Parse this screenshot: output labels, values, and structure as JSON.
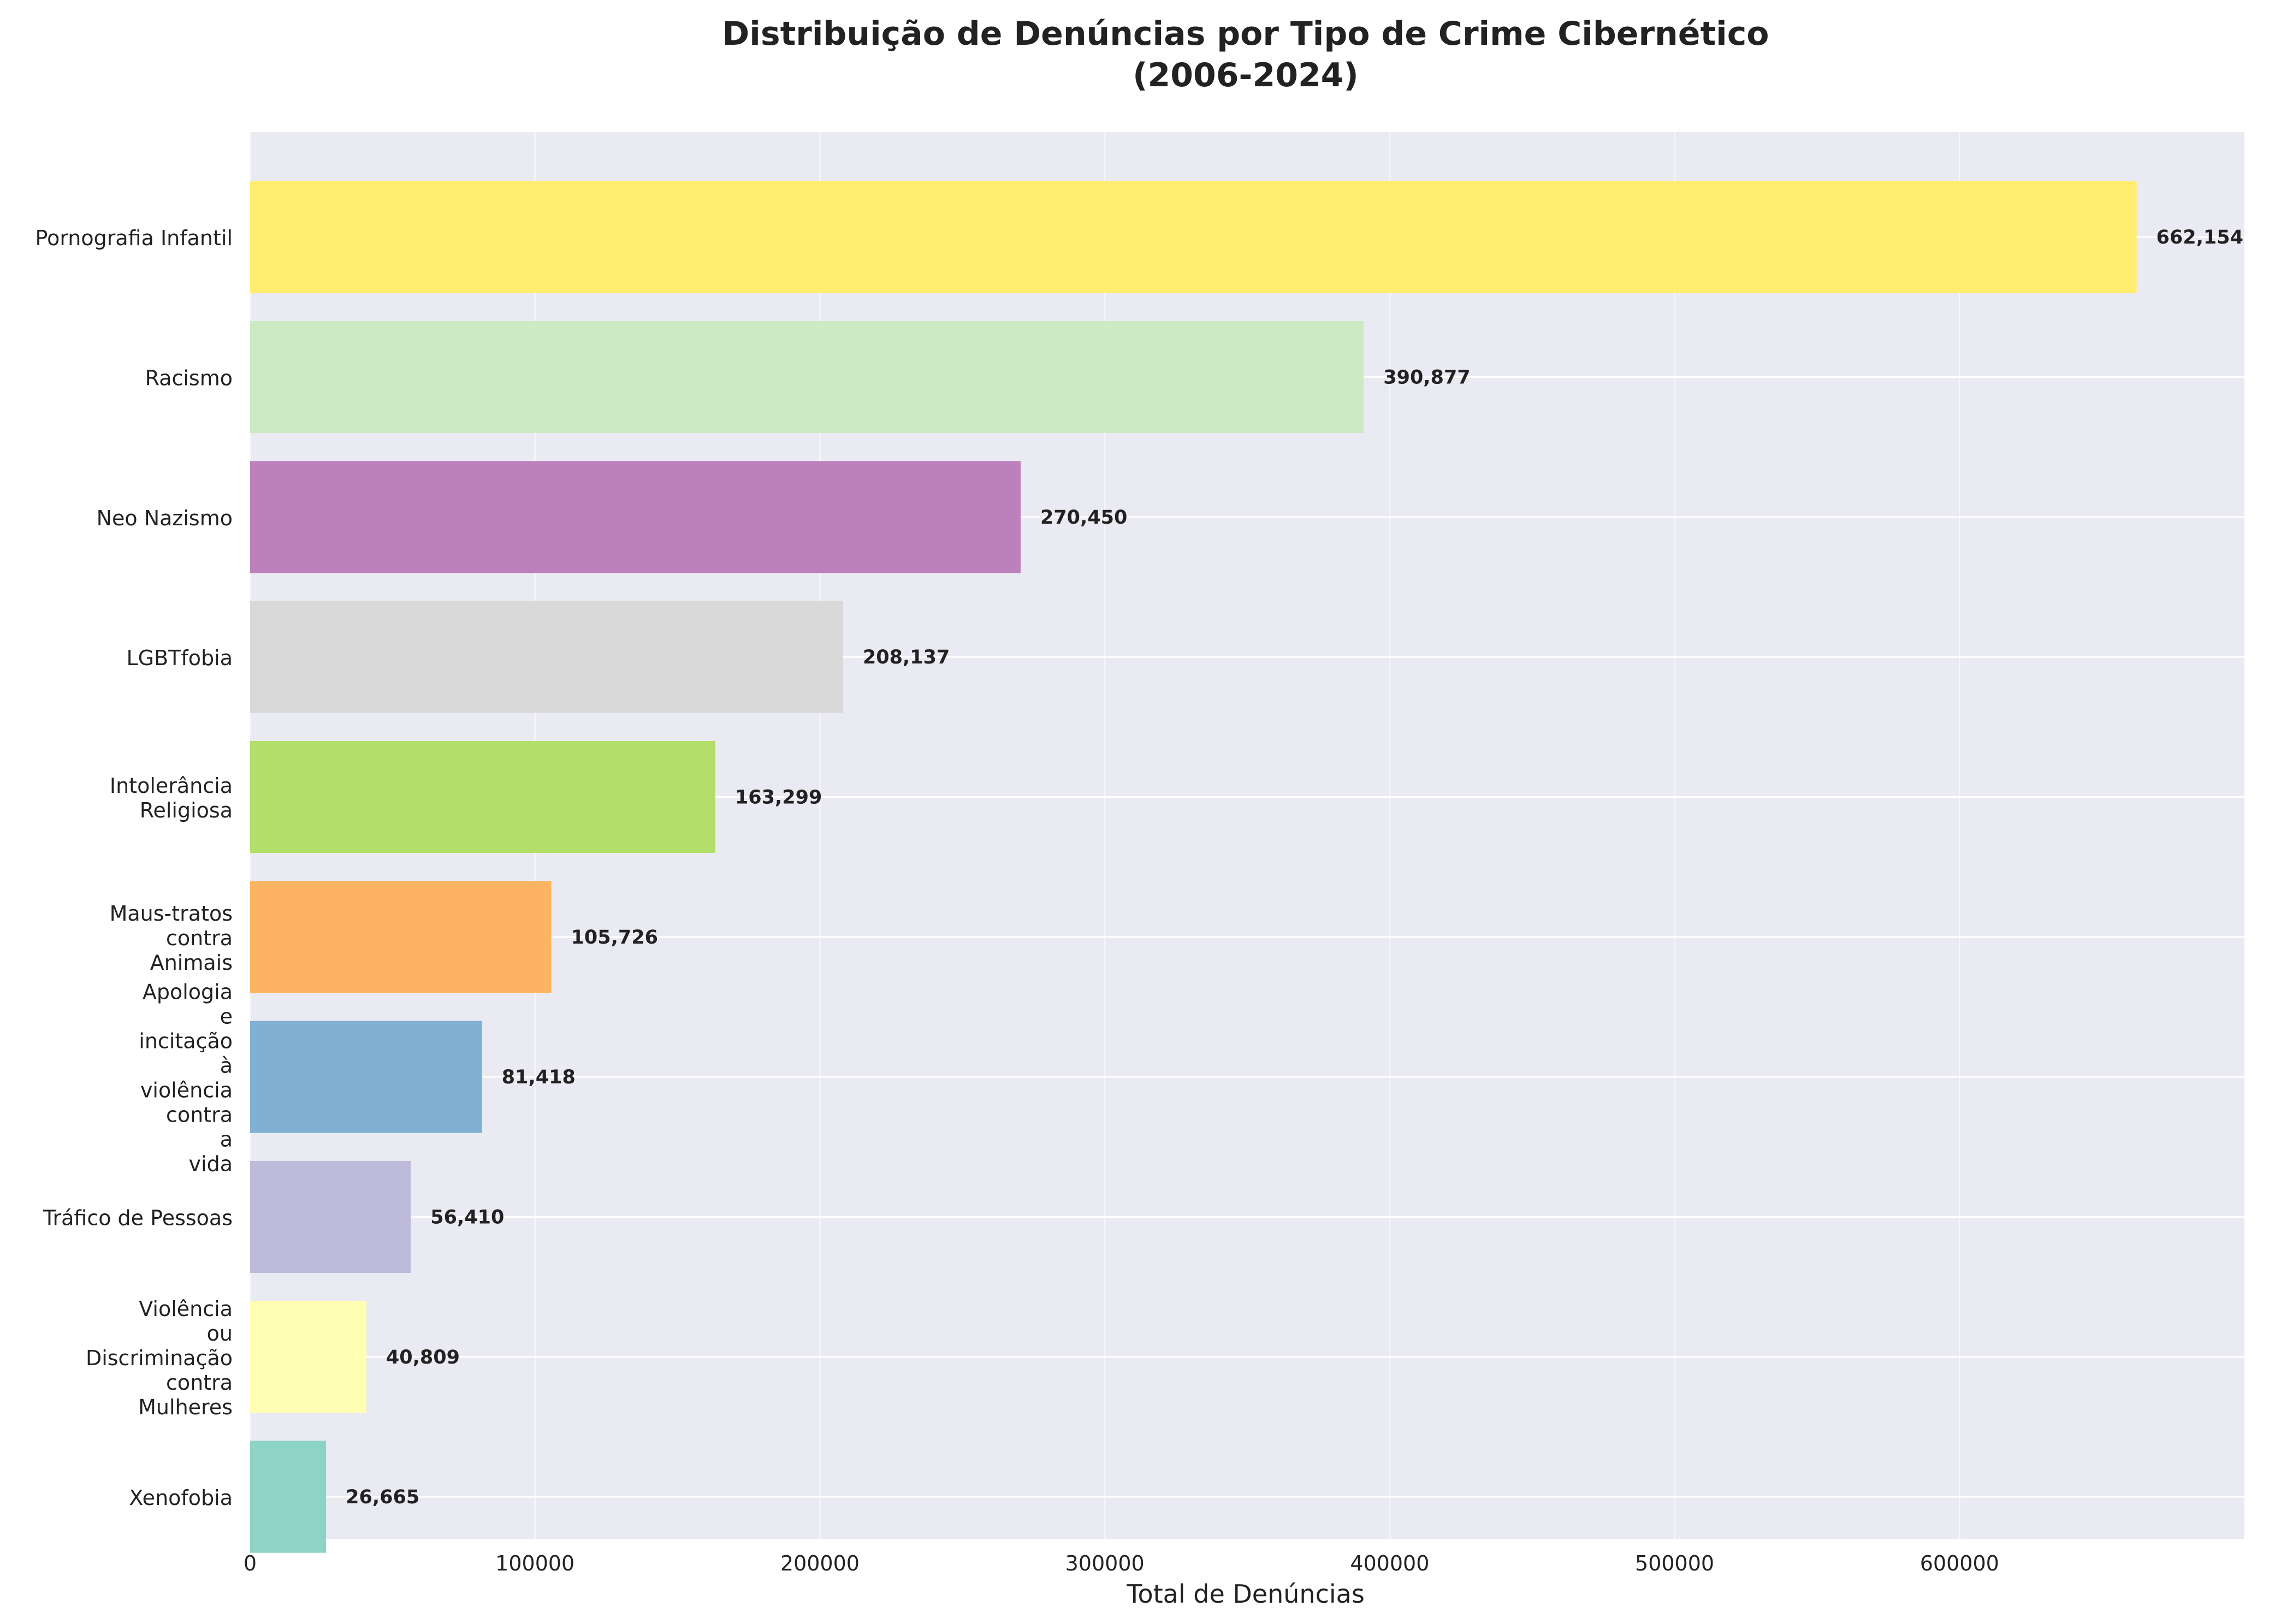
{
  "chart_data": {
    "type": "bar",
    "orientation": "horizontal",
    "title_line1": "Distribuição de Denúncias por Tipo de Crime Cibernético",
    "title_line2": "(2006-2024)",
    "xlabel": "Total de Denúncias",
    "ylabel": "",
    "xlim": [
      0,
      700000
    ],
    "grid": true,
    "x_ticks": [
      "0",
      "100000",
      "200000",
      "300000",
      "400000",
      "500000",
      "600000"
    ],
    "categories": [
      [
        "Pornografia Infantil"
      ],
      [
        "Racismo"
      ],
      [
        "Neo Nazismo"
      ],
      [
        "LGBTfobia"
      ],
      [
        "Intolerância",
        "Religiosa"
      ],
      [
        "Maus-tratos",
        "contra",
        "Animais"
      ],
      [
        "Apologia",
        "e",
        "incitação",
        "à",
        "violência",
        "contra",
        "a",
        "vida"
      ],
      [
        "Tráfico de Pessoas"
      ],
      [
        "Violência",
        "ou",
        "Discriminação",
        "contra",
        "Mulheres"
      ],
      [
        "Xenofobia"
      ]
    ],
    "values": [
      662154,
      390877,
      270450,
      208137,
      163299,
      105726,
      81418,
      56410,
      40809,
      26665
    ],
    "value_labels": [
      "662,154",
      "390,877",
      "270,450",
      "208,137",
      "163,299",
      "105,726",
      "81,418",
      "56,410",
      "40,809",
      "26,665"
    ],
    "colors": [
      "#ffed6f",
      "#ccebc5",
      "#bc80bd",
      "#d9d9d9",
      "#b3de69",
      "#fdb462",
      "#80b1d3",
      "#bebada",
      "#ffffb3",
      "#8dd3c7"
    ],
    "background": "#eaeaf2"
  }
}
